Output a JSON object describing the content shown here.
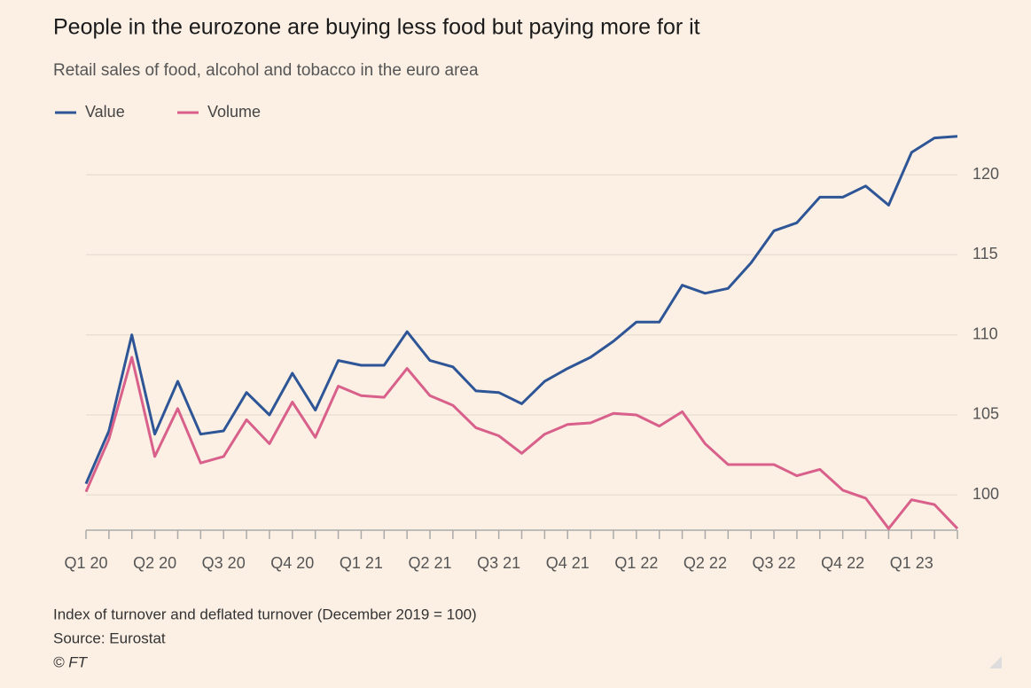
{
  "chart_data": {
    "type": "line",
    "title": "People in the eurozone are buying less food but paying more for it",
    "subtitle": "Retail sales of food, alcohol and tobacco in the euro area",
    "note": "Index of turnover and deflated turnover (December 2019 = 100)",
    "source": "Source: Eurostat",
    "credit": "© FT",
    "categories": [
      "Q1 20",
      null,
      null,
      "Q2 20",
      null,
      null,
      "Q3 20",
      null,
      null,
      "Q4 20",
      null,
      null,
      "Q1 21",
      null,
      null,
      "Q2 21",
      null,
      null,
      "Q3 21",
      null,
      null,
      "Q4 21",
      null,
      null,
      "Q1 22",
      null,
      null,
      "Q2 22",
      null,
      null,
      "Q3 22",
      null,
      null,
      "Q4 22",
      null,
      null,
      "Q1 23",
      null,
      null
    ],
    "series": [
      {
        "name": "Value",
        "color": "#2e5596",
        "values": [
          100.7,
          104.0,
          110.0,
          103.8,
          107.1,
          103.8,
          104.0,
          106.4,
          105.0,
          107.6,
          105.3,
          108.4,
          108.1,
          108.1,
          110.2,
          108.4,
          108.0,
          106.5,
          106.4,
          105.7,
          107.1,
          107.9,
          108.6,
          109.6,
          110.8,
          110.8,
          113.1,
          112.6,
          112.9,
          114.5,
          116.5,
          117.0,
          118.6,
          118.6,
          119.3,
          118.1,
          121.4,
          122.3,
          122.4
        ]
      },
      {
        "name": "Volume",
        "color": "#d8608a",
        "values": [
          100.2,
          103.5,
          108.6,
          102.4,
          105.4,
          102.0,
          102.4,
          104.7,
          103.2,
          105.8,
          103.6,
          106.8,
          106.2,
          106.1,
          107.9,
          106.2,
          105.6,
          104.2,
          103.7,
          102.6,
          103.8,
          104.4,
          104.5,
          105.1,
          105.0,
          104.3,
          105.2,
          103.2,
          101.9,
          101.9,
          101.9,
          101.2,
          101.6,
          100.3,
          99.8,
          97.9,
          99.7,
          99.4,
          97.9
        ]
      }
    ],
    "ylim": [
      97.8,
      122.5
    ],
    "yticks": [
      100,
      105,
      110,
      115,
      120
    ],
    "grid": true,
    "legend": "top-left"
  }
}
